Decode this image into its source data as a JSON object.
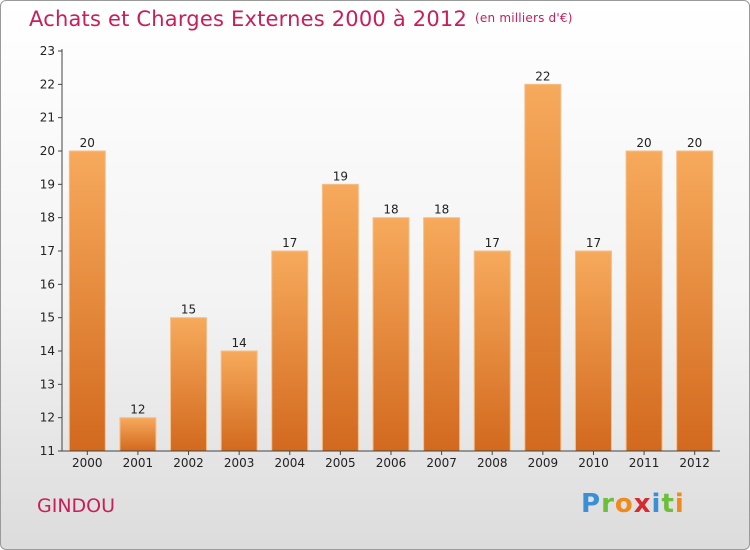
{
  "header": {
    "title": "Achats et Charges Externes 2000 à 2012",
    "subtitle": "(en milliers d'€)"
  },
  "footer": {
    "place": "GINDOU",
    "logo_letters": [
      "P",
      "r",
      "o",
      "x",
      "i",
      "t",
      "i"
    ]
  },
  "colors": {
    "title": "#c81e5a",
    "bar_light": "#f7aa5c",
    "bar_dark": "#d2691e"
  },
  "chart_data": {
    "type": "bar",
    "title": "Achats et Charges Externes 2000 à 2012",
    "subtitle": "(en milliers d'€)",
    "categories": [
      "2000",
      "2001",
      "2002",
      "2003",
      "2004",
      "2005",
      "2006",
      "2007",
      "2008",
      "2009",
      "2010",
      "2011",
      "2012"
    ],
    "values": [
      20,
      12,
      15,
      14,
      17,
      19,
      18,
      18,
      17,
      22,
      17,
      20,
      20
    ],
    "ylim": [
      11,
      23
    ],
    "yticks": [
      11,
      12,
      13,
      14,
      15,
      16,
      17,
      18,
      19,
      20,
      21,
      22,
      23
    ],
    "xlabel": "",
    "ylabel": "",
    "grid": false
  }
}
